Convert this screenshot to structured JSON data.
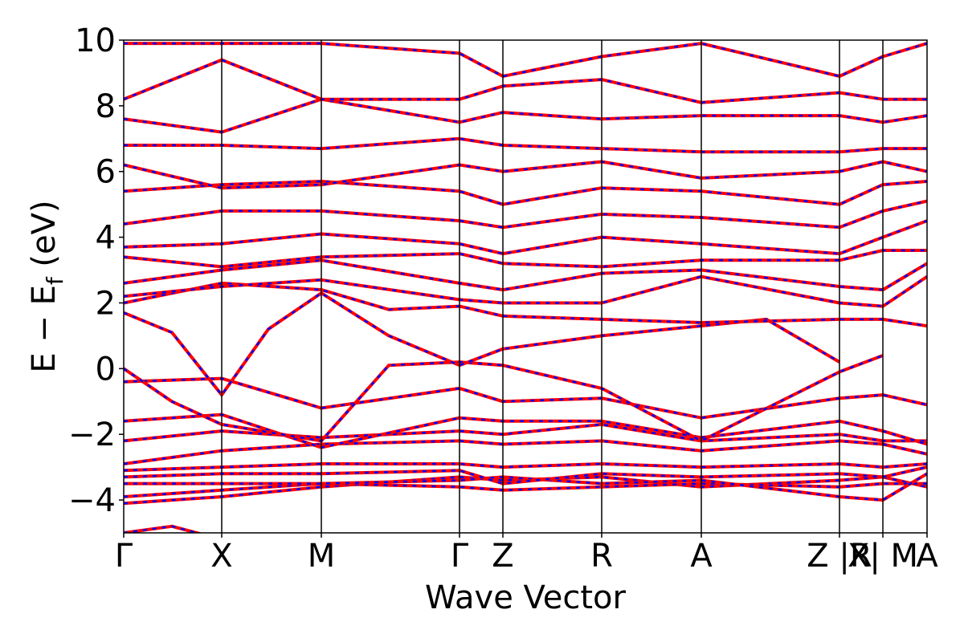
{
  "chart_data": {
    "type": "line",
    "xlabel": "Wave Vector",
    "ylabel": "E − E_f (eV)",
    "ylabel_parts": {
      "main": "E − E",
      "sub": "f",
      "unit": " (eV)"
    },
    "ylim": [
      -5,
      10
    ],
    "yticks": [
      10,
      8,
      6,
      4,
      2,
      0,
      -2,
      -4
    ],
    "ytick_labels": [
      "10",
      "8",
      "6",
      "4",
      "2",
      "0",
      "−2",
      "−4"
    ],
    "xlim": [
      0,
      1
    ],
    "high_symmetry_points": [
      {
        "label": "Γ",
        "x": 0.0
      },
      {
        "label": "X",
        "x": 0.122
      },
      {
        "label": "M",
        "x": 0.246
      },
      {
        "label": "Γ",
        "x": 0.418
      },
      {
        "label": "Z",
        "x": 0.472
      },
      {
        "label": "R",
        "x": 0.595
      },
      {
        "label": "A",
        "x": 0.719
      },
      {
        "label": "Z |R",
        "x": 0.891
      },
      {
        "label": "X| M",
        "x": 0.945
      },
      {
        "label": "A",
        "x": 1.0
      }
    ],
    "series_colors": {
      "calc_1": "#ff0000",
      "calc_2": "#0000ff"
    },
    "bands": [
      [
        [
          0.0,
          -5.0
        ],
        [
          0.06,
          -4.8
        ],
        [
          0.122,
          -5.2
        ]
      ],
      [
        [
          0.0,
          -4.1
        ],
        [
          0.122,
          -3.9
        ],
        [
          0.246,
          -3.6
        ],
        [
          0.418,
          -3.3
        ],
        [
          0.472,
          -3.4
        ],
        [
          0.595,
          -3.3
        ],
        [
          0.719,
          -3.6
        ],
        [
          0.891,
          -3.4
        ],
        [
          0.945,
          -3.3
        ],
        [
          1.0,
          -3.6
        ]
      ],
      [
        [
          0.0,
          -3.9
        ],
        [
          0.122,
          -3.7
        ],
        [
          0.246,
          -3.5
        ],
        [
          0.418,
          -3.6
        ],
        [
          0.472,
          -3.7
        ],
        [
          0.595,
          -3.6
        ],
        [
          0.719,
          -3.5
        ],
        [
          0.891,
          -3.6
        ],
        [
          0.945,
          -3.5
        ],
        [
          1.0,
          -3.5
        ]
      ],
      [
        [
          0.0,
          -3.5
        ],
        [
          0.122,
          -3.5
        ],
        [
          0.246,
          -3.5
        ],
        [
          0.418,
          -3.4
        ],
        [
          0.472,
          -3.3
        ],
        [
          0.595,
          -3.5
        ],
        [
          0.719,
          -3.4
        ],
        [
          0.891,
          -3.9
        ],
        [
          0.945,
          -4.0
        ],
        [
          1.0,
          -3.2
        ]
      ],
      [
        [
          0.0,
          -3.3
        ],
        [
          0.122,
          -3.2
        ],
        [
          0.246,
          -3.2
        ],
        [
          0.418,
          -3.1
        ],
        [
          0.472,
          -3.5
        ],
        [
          0.595,
          -3.2
        ],
        [
          0.719,
          -3.3
        ],
        [
          0.891,
          -3.2
        ],
        [
          0.945,
          -3.3
        ],
        [
          1.0,
          -3.0
        ]
      ],
      [
        [
          0.0,
          -3.1
        ],
        [
          0.122,
          -3.0
        ],
        [
          0.246,
          -2.9
        ],
        [
          0.418,
          -2.9
        ],
        [
          0.472,
          -3.0
        ],
        [
          0.595,
          -2.9
        ],
        [
          0.719,
          -3.0
        ],
        [
          0.891,
          -2.9
        ],
        [
          0.945,
          -3.0
        ],
        [
          1.0,
          -2.9
        ]
      ],
      [
        [
          0.0,
          -2.9
        ],
        [
          0.122,
          -2.5
        ],
        [
          0.246,
          -2.3
        ],
        [
          0.418,
          -2.2
        ],
        [
          0.472,
          -2.3
        ],
        [
          0.595,
          -2.2
        ],
        [
          0.719,
          -2.5
        ],
        [
          0.891,
          -2.2
        ],
        [
          0.945,
          -2.3
        ],
        [
          1.0,
          -2.6
        ]
      ],
      [
        [
          0.0,
          -2.2
        ],
        [
          0.122,
          -1.9
        ],
        [
          0.246,
          -2.1
        ],
        [
          0.418,
          -1.9
        ],
        [
          0.472,
          -2.0
        ],
        [
          0.595,
          -1.7
        ],
        [
          0.719,
          -2.2
        ],
        [
          0.891,
          -2.0
        ],
        [
          0.945,
          -2.2
        ],
        [
          1.0,
          -2.2
        ]
      ],
      [
        [
          0.0,
          -1.6
        ],
        [
          0.122,
          -1.4
        ],
        [
          0.246,
          -2.4
        ],
        [
          0.418,
          -1.5
        ],
        [
          0.472,
          -1.6
        ],
        [
          0.595,
          -1.6
        ],
        [
          0.719,
          -2.1
        ],
        [
          0.891,
          -1.6
        ],
        [
          0.945,
          -1.9
        ],
        [
          1.0,
          -2.3
        ]
      ],
      [
        [
          0.0,
          -0.4
        ],
        [
          0.122,
          -0.3
        ],
        [
          0.246,
          -1.2
        ],
        [
          0.418,
          -0.6
        ],
        [
          0.472,
          -1.0
        ],
        [
          0.595,
          -0.9
        ],
        [
          0.719,
          -1.5
        ],
        [
          0.891,
          -0.9
        ],
        [
          0.945,
          -0.8
        ],
        [
          1.0,
          -1.1
        ]
      ],
      [
        [
          0.0,
          0.0
        ],
        [
          0.06,
          -1.0
        ],
        [
          0.122,
          -1.7
        ],
        [
          0.246,
          -2.2
        ],
        [
          0.33,
          0.1
        ],
        [
          0.418,
          0.2
        ],
        [
          0.472,
          0.1
        ],
        [
          0.595,
          -0.6
        ],
        [
          0.719,
          -2.2
        ],
        [
          0.891,
          -0.1
        ],
        [
          0.945,
          0.4
        ]
      ],
      [
        [
          0.0,
          1.7
        ],
        [
          0.06,
          1.1
        ],
        [
          0.122,
          -0.8
        ],
        [
          0.18,
          1.2
        ],
        [
          0.246,
          2.3
        ],
        [
          0.33,
          1.0
        ],
        [
          0.418,
          0.1
        ],
        [
          0.472,
          0.6
        ],
        [
          0.595,
          1.0
        ],
        [
          0.719,
          1.3
        ],
        [
          0.8,
          1.5
        ],
        [
          0.891,
          0.2
        ]
      ],
      [
        [
          0.0,
          2.0
        ],
        [
          0.122,
          2.6
        ],
        [
          0.246,
          2.4
        ],
        [
          0.33,
          1.8
        ],
        [
          0.418,
          1.9
        ],
        [
          0.472,
          1.6
        ],
        [
          0.595,
          1.5
        ],
        [
          0.719,
          1.4
        ],
        [
          0.891,
          1.5
        ],
        [
          0.945,
          1.5
        ],
        [
          1.0,
          1.3
        ]
      ],
      [
        [
          0.0,
          2.2
        ],
        [
          0.122,
          2.5
        ],
        [
          0.246,
          2.7
        ],
        [
          0.418,
          2.1
        ],
        [
          0.472,
          2.0
        ],
        [
          0.595,
          2.0
        ],
        [
          0.719,
          2.8
        ],
        [
          0.891,
          2.0
        ],
        [
          0.945,
          1.9
        ],
        [
          1.0,
          2.8
        ]
      ],
      [
        [
          0.0,
          2.6
        ],
        [
          0.122,
          3.0
        ],
        [
          0.246,
          3.3
        ],
        [
          0.418,
          2.6
        ],
        [
          0.472,
          2.4
        ],
        [
          0.595,
          2.9
        ],
        [
          0.719,
          3.0
        ],
        [
          0.891,
          2.5
        ],
        [
          0.945,
          2.4
        ],
        [
          1.0,
          3.2
        ]
      ],
      [
        [
          0.0,
          3.4
        ],
        [
          0.122,
          3.1
        ],
        [
          0.246,
          3.4
        ],
        [
          0.418,
          3.5
        ],
        [
          0.472,
          3.2
        ],
        [
          0.595,
          3.1
        ],
        [
          0.719,
          3.3
        ],
        [
          0.891,
          3.3
        ],
        [
          0.945,
          3.6
        ],
        [
          1.0,
          3.6
        ]
      ],
      [
        [
          0.0,
          3.7
        ],
        [
          0.122,
          3.8
        ],
        [
          0.246,
          4.1
        ],
        [
          0.418,
          3.8
        ],
        [
          0.472,
          3.5
        ],
        [
          0.595,
          4.0
        ],
        [
          0.719,
          3.8
        ],
        [
          0.891,
          3.5
        ],
        [
          0.945,
          4.0
        ],
        [
          1.0,
          4.5
        ]
      ],
      [
        [
          0.0,
          4.4
        ],
        [
          0.122,
          4.8
        ],
        [
          0.246,
          4.8
        ],
        [
          0.418,
          4.5
        ],
        [
          0.472,
          4.3
        ],
        [
          0.595,
          4.7
        ],
        [
          0.719,
          4.6
        ],
        [
          0.891,
          4.3
        ],
        [
          0.945,
          4.8
        ],
        [
          1.0,
          5.1
        ]
      ],
      [
        [
          0.0,
          5.4
        ],
        [
          0.122,
          5.6
        ],
        [
          0.246,
          5.7
        ],
        [
          0.418,
          5.4
        ],
        [
          0.472,
          5.0
        ],
        [
          0.595,
          5.5
        ],
        [
          0.719,
          5.4
        ],
        [
          0.891,
          5.0
        ],
        [
          0.945,
          5.6
        ],
        [
          1.0,
          5.7
        ]
      ],
      [
        [
          0.0,
          6.2
        ],
        [
          0.122,
          5.5
        ],
        [
          0.246,
          5.6
        ],
        [
          0.418,
          6.2
        ],
        [
          0.472,
          6.0
        ],
        [
          0.595,
          6.3
        ],
        [
          0.719,
          5.8
        ],
        [
          0.891,
          6.0
        ],
        [
          0.945,
          6.3
        ],
        [
          1.0,
          6.0
        ]
      ],
      [
        [
          0.0,
          6.8
        ],
        [
          0.122,
          6.8
        ],
        [
          0.246,
          6.7
        ],
        [
          0.418,
          7.0
        ],
        [
          0.472,
          6.8
        ],
        [
          0.595,
          6.7
        ],
        [
          0.719,
          6.6
        ],
        [
          0.891,
          6.6
        ],
        [
          0.945,
          6.7
        ],
        [
          1.0,
          6.7
        ]
      ],
      [
        [
          0.0,
          7.6
        ],
        [
          0.122,
          7.2
        ],
        [
          0.246,
          8.2
        ],
        [
          0.418,
          7.5
        ],
        [
          0.472,
          7.8
        ],
        [
          0.595,
          7.6
        ],
        [
          0.719,
          7.7
        ],
        [
          0.891,
          7.7
        ],
        [
          0.945,
          7.5
        ],
        [
          1.0,
          7.7
        ]
      ],
      [
        [
          0.0,
          8.2
        ],
        [
          0.122,
          9.4
        ],
        [
          0.246,
          8.2
        ],
        [
          0.418,
          8.2
        ],
        [
          0.472,
          8.6
        ],
        [
          0.595,
          8.8
        ],
        [
          0.719,
          8.1
        ],
        [
          0.891,
          8.4
        ],
        [
          0.945,
          8.2
        ],
        [
          1.0,
          8.2
        ]
      ],
      [
        [
          0.0,
          9.9
        ],
        [
          0.122,
          9.9
        ],
        [
          0.246,
          9.9
        ],
        [
          0.418,
          9.6
        ],
        [
          0.472,
          8.9
        ],
        [
          0.595,
          9.5
        ],
        [
          0.719,
          9.9
        ],
        [
          0.891,
          8.9
        ],
        [
          0.945,
          9.5
        ],
        [
          1.0,
          9.9
        ]
      ]
    ]
  }
}
